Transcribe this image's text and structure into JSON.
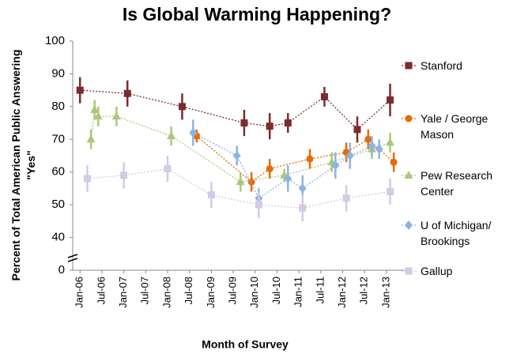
{
  "chart_data": {
    "type": "line",
    "title": "Is Global Warming Happening?",
    "x_label": "Month of Survey",
    "y_label": "Percent of Total American Public Answering \"Yes\"",
    "xlim": [
      "2005-11",
      "2013-06"
    ],
    "xticks": [
      {
        "value": "2006-01",
        "label": "Jan-06"
      },
      {
        "value": "2006-07",
        "label": "Jul-06"
      },
      {
        "value": "2007-01",
        "label": "Jan-07"
      },
      {
        "value": "2007-07",
        "label": "Jul-07"
      },
      {
        "value": "2008-01",
        "label": "Jan-08"
      },
      {
        "value": "2008-07",
        "label": "Jul-08"
      },
      {
        "value": "2009-01",
        "label": "Jan-09"
      },
      {
        "value": "2009-07",
        "label": "Jul-09"
      },
      {
        "value": "2010-01",
        "label": "Jan-10"
      },
      {
        "value": "2010-07",
        "label": "Jul-10"
      },
      {
        "value": "2011-01",
        "label": "Jan-11"
      },
      {
        "value": "2011-07",
        "label": "Jul-11"
      },
      {
        "value": "2012-01",
        "label": "Jan-12"
      },
      {
        "value": "2012-07",
        "label": "Jul-12"
      },
      {
        "value": "2013-01",
        "label": "Jan-13"
      }
    ],
    "ylim": [
      0,
      100
    ],
    "yticks": [
      0,
      40,
      50,
      60,
      70,
      80,
      90,
      100
    ],
    "axis_break": [
      0,
      40
    ],
    "series": [
      {
        "name": "Stanford",
        "color": "#7b2c2c",
        "marker": "square",
        "x": [
          "2006-01",
          "2007-02",
          "2008-05",
          "2009-10",
          "2010-05",
          "2010-10",
          "2011-08",
          "2012-05",
          "2013-02"
        ],
        "values": [
          85,
          84,
          80,
          75,
          74,
          75,
          83,
          73,
          82
        ],
        "errors": [
          4,
          4,
          4,
          4,
          4,
          3,
          3,
          4,
          5
        ]
      },
      {
        "name": "Yale / George Mason",
        "color": "#e46c0a",
        "marker": "circle",
        "x": [
          "2008-09",
          "2009-12",
          "2010-05",
          "2011-04",
          "2012-02",
          "2012-08",
          "2013-03"
        ],
        "values": [
          71,
          57,
          61,
          64,
          66,
          70,
          63
        ],
        "errors": [
          2,
          3,
          3,
          3,
          3,
          3,
          3
        ]
      },
      {
        "name": "Pew Research Center",
        "color": "#a9c97a",
        "marker": "triangle",
        "x": [
          "2006-04",
          "2006-05",
          "2006-06",
          "2006-11",
          "2008-02",
          "2009-09",
          "2010-09",
          "2011-10",
          "2012-09",
          "2013-02"
        ],
        "values": [
          70,
          79,
          77,
          77,
          71,
          57,
          59,
          63,
          67,
          69
        ],
        "errors": [
          3,
          3,
          3,
          3,
          3,
          3,
          2,
          3,
          3,
          3
        ]
      },
      {
        "name": "U of Michigan/ Brookings",
        "color": "#8db3e2",
        "marker": "diamond",
        "x": [
          "2008-08",
          "2009-08",
          "2010-02",
          "2010-10",
          "2011-02",
          "2011-11",
          "2012-03",
          "2012-09",
          "2012-11"
        ],
        "values": [
          72,
          65,
          52,
          58,
          55,
          62,
          65,
          68,
          67
        ],
        "errors": [
          4,
          3,
          3,
          4,
          4,
          4,
          4,
          3,
          3
        ]
      },
      {
        "name": "Gallup",
        "color": "#d3cae3",
        "marker": "square",
        "x": [
          "2006-03",
          "2007-01",
          "2008-01",
          "2009-01",
          "2010-02",
          "2011-02",
          "2012-02",
          "2013-02"
        ],
        "values": [
          58,
          59,
          61,
          53,
          50,
          49,
          52,
          54
        ],
        "errors": [
          4,
          4,
          4,
          4,
          4,
          4,
          4,
          4
        ]
      }
    ]
  }
}
